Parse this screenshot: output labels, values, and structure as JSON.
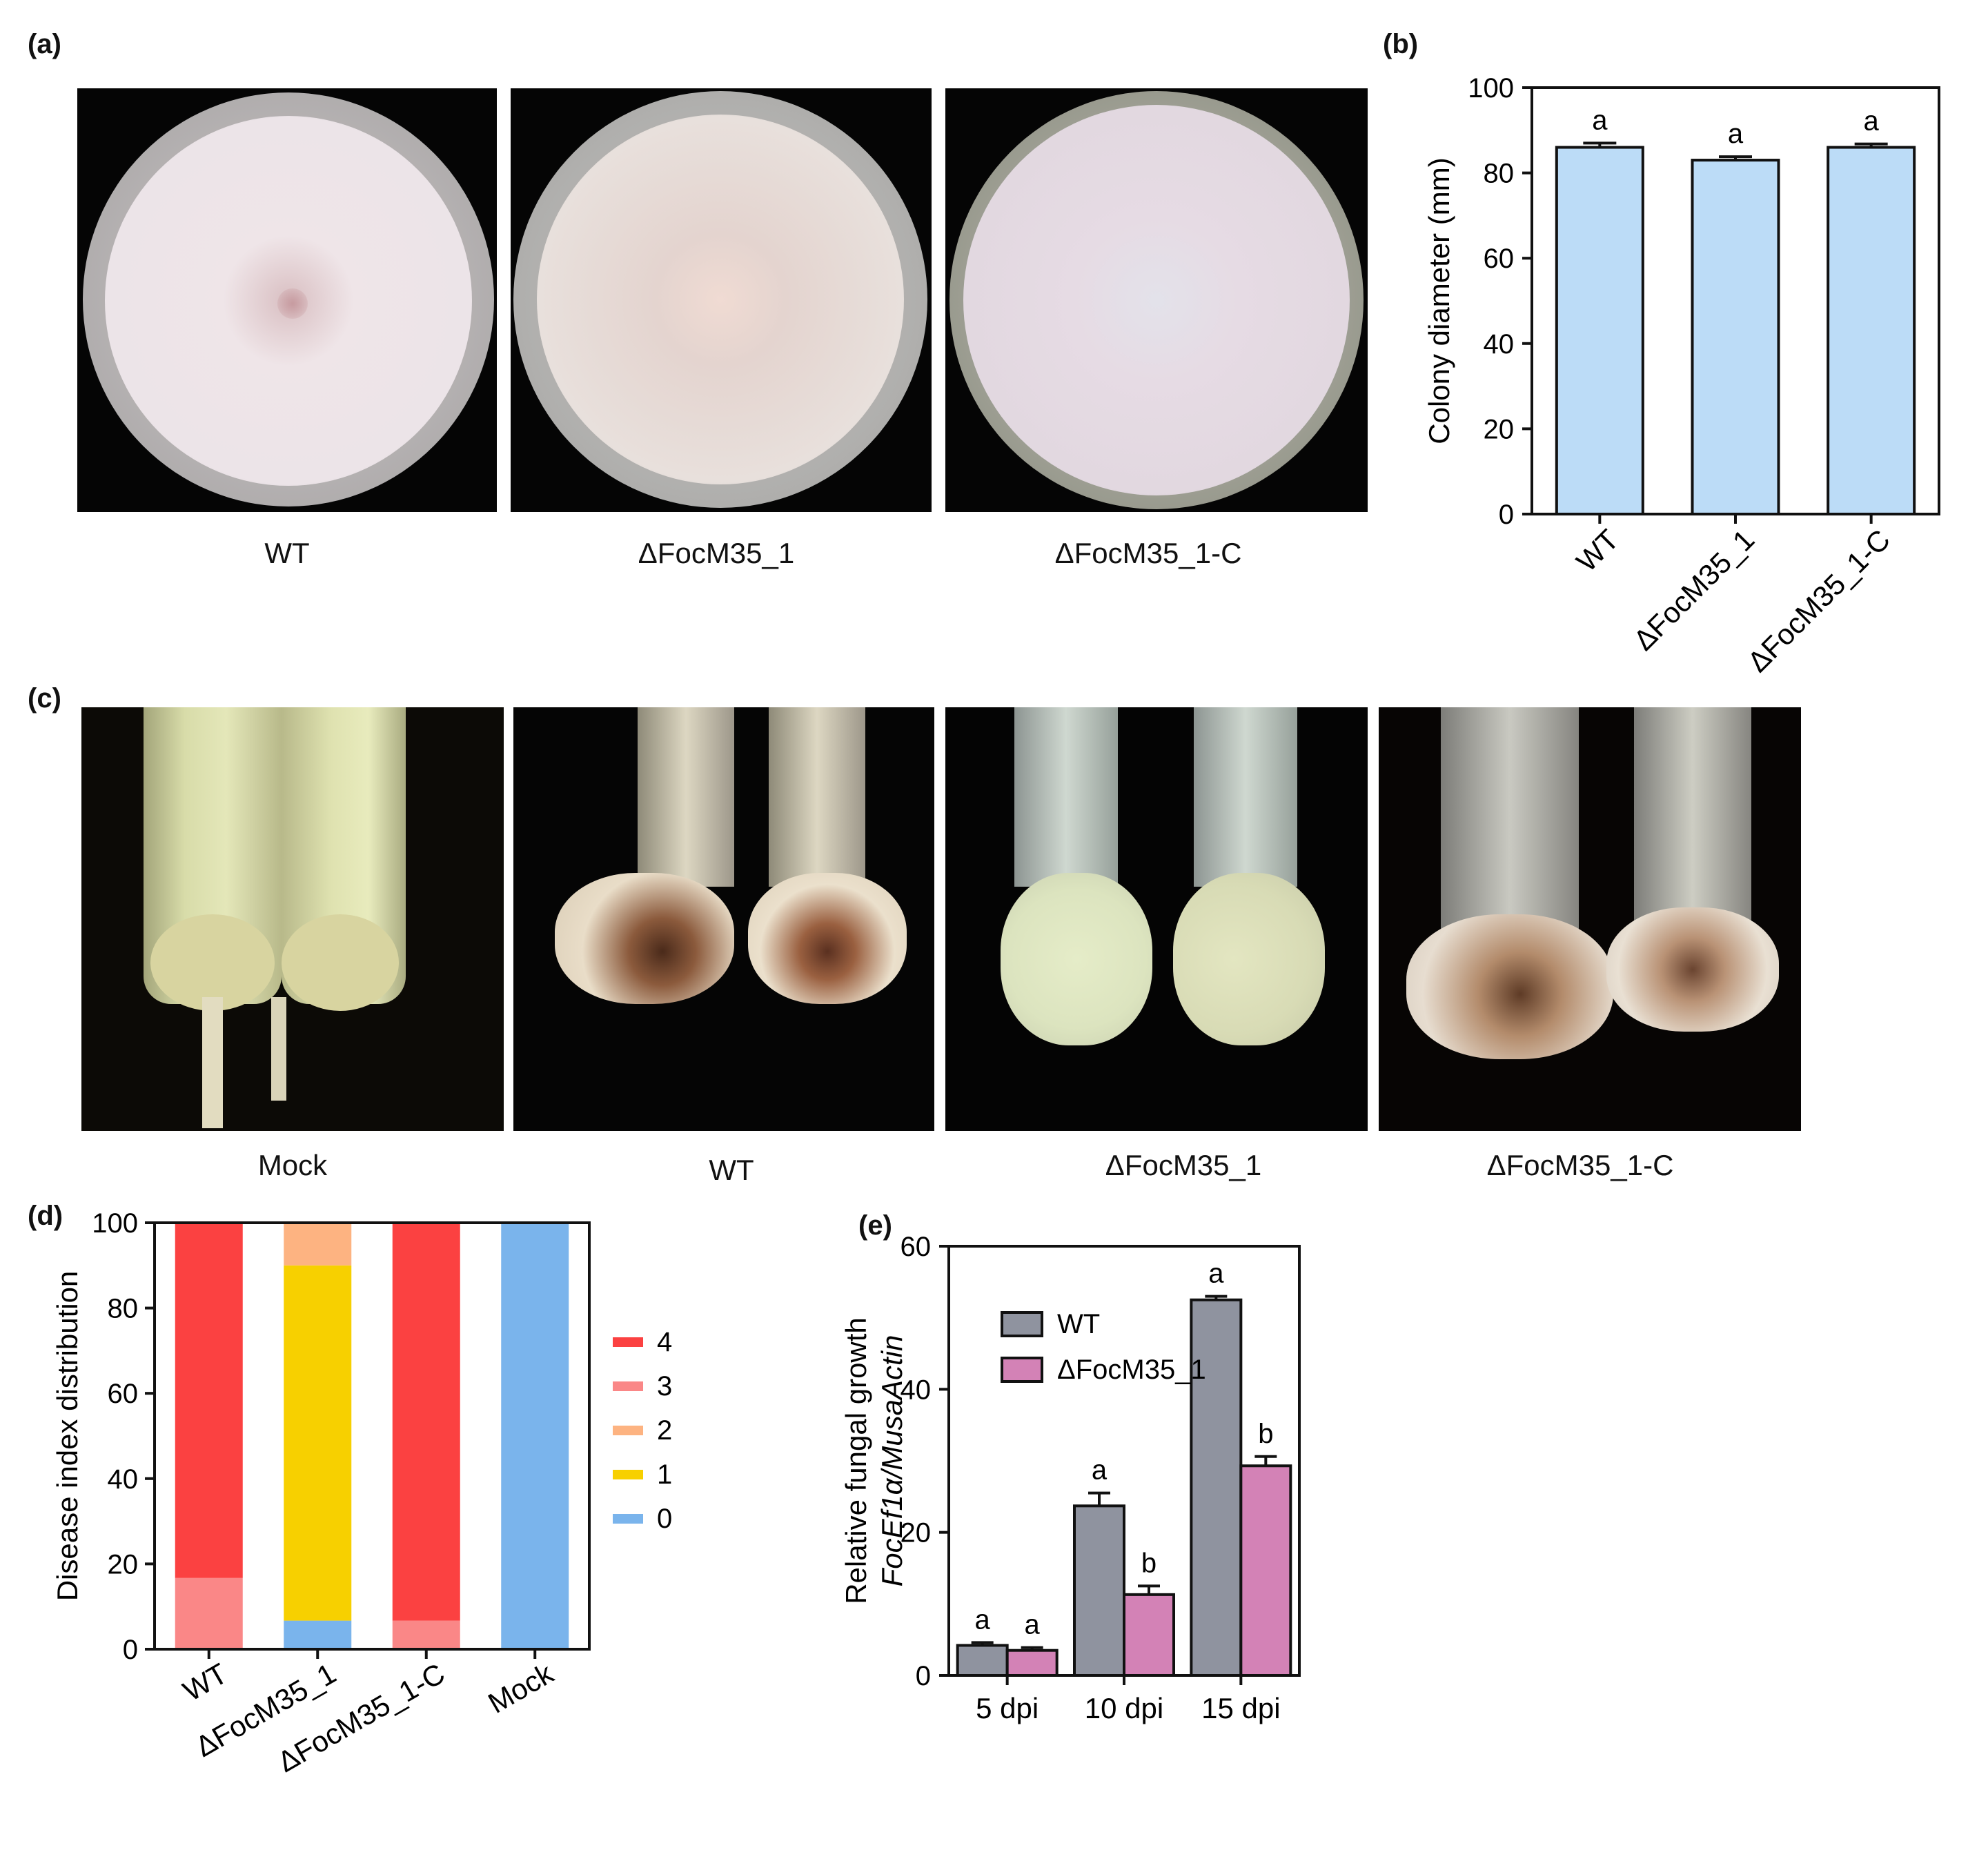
{
  "panels": {
    "a": {
      "label": "(a)",
      "captions": [
        "WT",
        "ΔFocM35_1",
        "ΔFocM35_1-C"
      ]
    },
    "b": {
      "label": "(b)"
    },
    "c": {
      "label": "(c)",
      "captions": [
        "Mock",
        "WT",
        "ΔFocM35_1",
        "ΔFocM35_1-C"
      ]
    },
    "d": {
      "label": "(d)"
    },
    "e": {
      "label": "(e)"
    }
  },
  "chart_data": [
    {
      "id": "b",
      "type": "bar",
      "categories": [
        "WT",
        "ΔFocM35_1",
        "ΔFocM35_1-C"
      ],
      "values": [
        86,
        83,
        86
      ],
      "errors": [
        1.0,
        0.8,
        0.8
      ],
      "significance": [
        "a",
        "a",
        "a"
      ],
      "ylabel": "Colony diameter (mm)",
      "ylim": [
        0,
        100
      ],
      "yticks": [
        0,
        20,
        40,
        60,
        80,
        100
      ],
      "bar_color": "#bcdcf7"
    },
    {
      "id": "d",
      "type": "bar",
      "stacked": true,
      "categories": [
        "WT",
        "ΔFocM35_1",
        "ΔFocM35_1-C",
        "Mock"
      ],
      "ylabel": "Disease index distribution",
      "ylim": [
        0,
        100
      ],
      "yticks": [
        0,
        20,
        40,
        60,
        80,
        100
      ],
      "legend_position": "right",
      "series": [
        {
          "name": "0",
          "color": "#7ab4ec",
          "values": [
            0,
            6.7,
            0,
            100
          ]
        },
        {
          "name": "1",
          "color": "#f7d000",
          "values": [
            0,
            83.3,
            0,
            0
          ]
        },
        {
          "name": "2",
          "color": "#fdb381",
          "values": [
            0,
            10,
            0,
            0
          ]
        },
        {
          "name": "3",
          "color": "#fa8787",
          "values": [
            16.7,
            0,
            6.7,
            0
          ]
        },
        {
          "name": "4",
          "color": "#fb4141",
          "values": [
            83.3,
            0,
            93.3,
            0
          ]
        }
      ],
      "legend_order": [
        "4",
        "3",
        "2",
        "1",
        "0"
      ]
    },
    {
      "id": "e",
      "type": "bar",
      "categories": [
        "5 dpi",
        "10 dpi",
        "15 dpi"
      ],
      "ylabel_line1": "Relative fungal growth",
      "ylabel_line2": "FocEf1α/MusaActin",
      "ylim": [
        0,
        60
      ],
      "yticks": [
        0,
        20,
        40,
        60
      ],
      "legend_position": "top-left",
      "series": [
        {
          "name": "WT",
          "color": "#8f939f",
          "values": [
            4.2,
            23.7,
            52.5
          ],
          "errors": [
            0.4,
            1.8,
            0.5
          ],
          "significance": [
            "a",
            "a",
            "a"
          ]
        },
        {
          "name": "ΔFocM35_1",
          "color": "#d382b6",
          "values": [
            3.5,
            11.3,
            29.3
          ],
          "errors": [
            0.4,
            1.2,
            1.3
          ],
          "significance": [
            "a",
            "b",
            "b"
          ]
        }
      ]
    }
  ]
}
